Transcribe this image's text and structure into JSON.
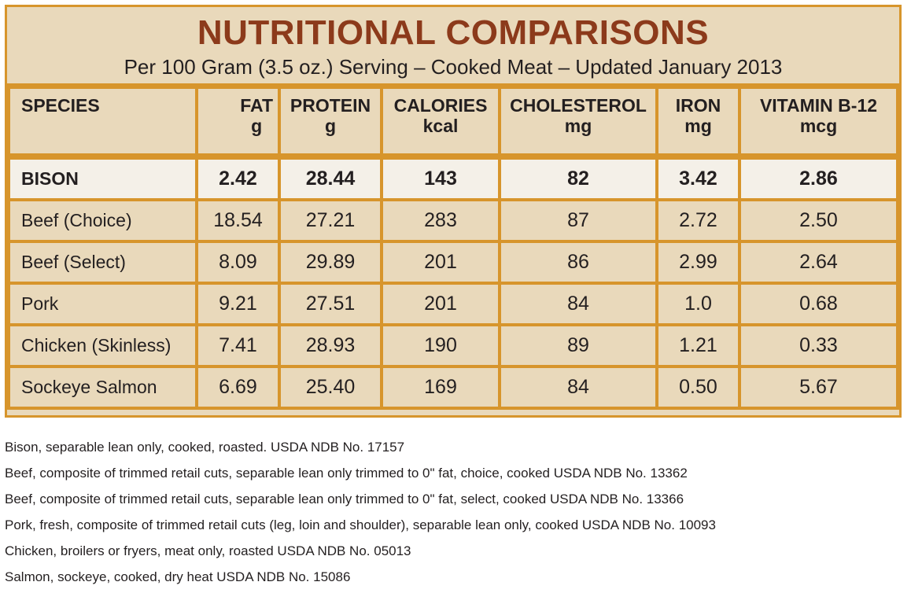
{
  "title": "NUTRITIONAL COMPARISONS",
  "subtitle": "Per 100 Gram (3.5 oz.) Serving – Cooked Meat – Updated January 2013",
  "columns": [
    {
      "name": "SPECIES",
      "unit": ""
    },
    {
      "name": "FAT",
      "unit": "g"
    },
    {
      "name": "PROTEIN",
      "unit": "g"
    },
    {
      "name": "CALORIES",
      "unit": "kcal"
    },
    {
      "name": "CHOLESTEROL",
      "unit": "mg"
    },
    {
      "name": "IRON",
      "unit": "mg"
    },
    {
      "name": "VITAMIN B-12",
      "unit": "mcg"
    }
  ],
  "rows": [
    [
      "BISON",
      "2.42",
      "28.44",
      "143",
      "82",
      "3.42",
      "2.86"
    ],
    [
      "Beef (Choice)",
      "18.54",
      "27.21",
      "283",
      "87",
      "2.72",
      "2.50"
    ],
    [
      "Beef (Select)",
      "8.09",
      "29.89",
      "201",
      "86",
      "2.99",
      "2.64"
    ],
    [
      "Pork",
      "9.21",
      "27.51",
      "201",
      "84",
      "1.0",
      "0.68"
    ],
    [
      "Chicken (Skinless)",
      "7.41",
      "28.93",
      "190",
      "89",
      "1.21",
      "0.33"
    ],
    [
      "Sockeye Salmon",
      "6.69",
      "25.40",
      "169",
      "84",
      "0.50",
      "5.67"
    ]
  ],
  "notes": [
    "Bison, separable lean only, cooked, roasted. USDA NDB No. 17157",
    "Beef, composite of trimmed retail cuts, separable lean only trimmed to 0\" fat, choice, cooked USDA NDB No. 13362",
    "Beef, composite of trimmed retail cuts, separable lean only trimmed to 0\" fat, select, cooked USDA NDB No. 13366",
    "Pork, fresh, composite of trimmed retail cuts (leg, loin and shoulder), separable lean only, cooked USDA NDB No. 10093",
    "Chicken, broilers or fryers, meat only, roasted USDA NDB No. 05013",
    "Salmon, sockeye, cooked, dry heat USDA NDB No. 15086"
  ],
  "colors": {
    "border": "#d7952c",
    "background": "#e9d9bb",
    "title": "#8c3a1b",
    "highlight_row": "#f4f0e8"
  }
}
